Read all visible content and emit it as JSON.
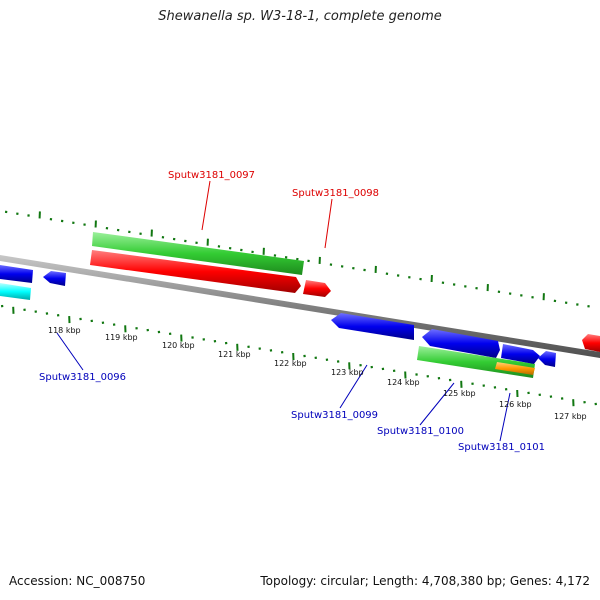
{
  "title": "Shewanella sp. W3-18-1, complete genome",
  "accession": "Accession: NC_008750",
  "genome_info": "Topology: circular; Length: 4,708,380 bp; Genes: 4,172",
  "colors": {
    "backbone": "#808080",
    "green": "#33cc33",
    "red": "#ff0000",
    "blue": "#0000ee",
    "cyan": "#00ffff",
    "orange": "#ff9900",
    "tick": "#117711",
    "label_red": "#dd0000",
    "label_blue": "#0000bb"
  },
  "ticks": [
    "118 kbp",
    "119 kbp",
    "120 kbp",
    "121 kbp",
    "122 kbp",
    "123 kbp",
    "124 kbp",
    "125 kbp",
    "126 kbp",
    "127 kbp"
  ],
  "gene_labels": [
    {
      "text": "Sputw3181_0097",
      "color": "red"
    },
    {
      "text": "Sputw3181_0098",
      "color": "red"
    },
    {
      "text": "Sputw3181_0096",
      "color": "blue"
    },
    {
      "text": "Sputw3181_0099",
      "color": "blue"
    },
    {
      "text": "Sputw3181_0100",
      "color": "blue"
    },
    {
      "text": "Sputw3181_0101",
      "color": "blue"
    }
  ]
}
